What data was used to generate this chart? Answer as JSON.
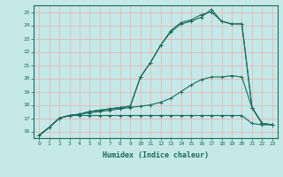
{
  "xlabel": "Humidex (Indice chaleur)",
  "background_color": "#c5e8e8",
  "grid_color": "#e8b8b8",
  "line_color": "#1a6b5a",
  "xlim": [
    -0.5,
    23.5
  ],
  "ylim": [
    15.5,
    25.5
  ],
  "xticks": [
    0,
    1,
    2,
    3,
    4,
    5,
    6,
    7,
    8,
    9,
    10,
    11,
    12,
    13,
    14,
    15,
    16,
    17,
    18,
    19,
    20,
    21,
    22,
    23
  ],
  "yticks": [
    16,
    17,
    18,
    19,
    20,
    21,
    22,
    23,
    24,
    25
  ],
  "line1_x": [
    0,
    1,
    2,
    3,
    4,
    5,
    6,
    7,
    8,
    9,
    10,
    11,
    12,
    13,
    14,
    15,
    16,
    17,
    18,
    19,
    20,
    21,
    22,
    23
  ],
  "line1_y": [
    15.7,
    16.3,
    17.0,
    17.2,
    17.2,
    17.2,
    17.2,
    17.2,
    17.2,
    17.2,
    17.2,
    17.2,
    17.2,
    17.2,
    17.2,
    17.2,
    17.2,
    17.2,
    17.2,
    17.2,
    17.2,
    16.6,
    16.5,
    16.5
  ],
  "line2_x": [
    0,
    1,
    2,
    3,
    4,
    5,
    6,
    7,
    8,
    9,
    10,
    11,
    12,
    13,
    14,
    15,
    16,
    17,
    18,
    19,
    20,
    21,
    22,
    23
  ],
  "line2_y": [
    15.7,
    16.3,
    17.0,
    17.2,
    17.3,
    17.4,
    17.5,
    17.6,
    17.7,
    17.8,
    17.9,
    18.0,
    18.2,
    18.5,
    19.0,
    19.5,
    19.9,
    20.1,
    20.1,
    20.2,
    20.1,
    17.8,
    16.6,
    16.5
  ],
  "line3_x": [
    0,
    1,
    2,
    3,
    4,
    5,
    6,
    7,
    8,
    9,
    10,
    11,
    12,
    13,
    14,
    15,
    16,
    17,
    18,
    19,
    20,
    21,
    22,
    23
  ],
  "line3_y": [
    15.7,
    16.3,
    17.0,
    17.2,
    17.3,
    17.5,
    17.6,
    17.7,
    17.8,
    17.9,
    20.1,
    21.2,
    22.5,
    23.5,
    24.1,
    24.3,
    24.6,
    25.2,
    24.3,
    24.1,
    24.1,
    17.8,
    16.6,
    16.5
  ],
  "line4_x": [
    0,
    1,
    2,
    3,
    4,
    5,
    6,
    7,
    8,
    9,
    10,
    11,
    12,
    13,
    14,
    15,
    16,
    17,
    18,
    19,
    20,
    21,
    22,
    23
  ],
  "line4_y": [
    15.7,
    16.3,
    17.0,
    17.2,
    17.3,
    17.5,
    17.6,
    17.7,
    17.8,
    17.9,
    20.1,
    21.2,
    22.5,
    23.6,
    24.2,
    24.4,
    24.8,
    25.0,
    24.3,
    24.1,
    24.1,
    17.8,
    16.6,
    16.5
  ]
}
